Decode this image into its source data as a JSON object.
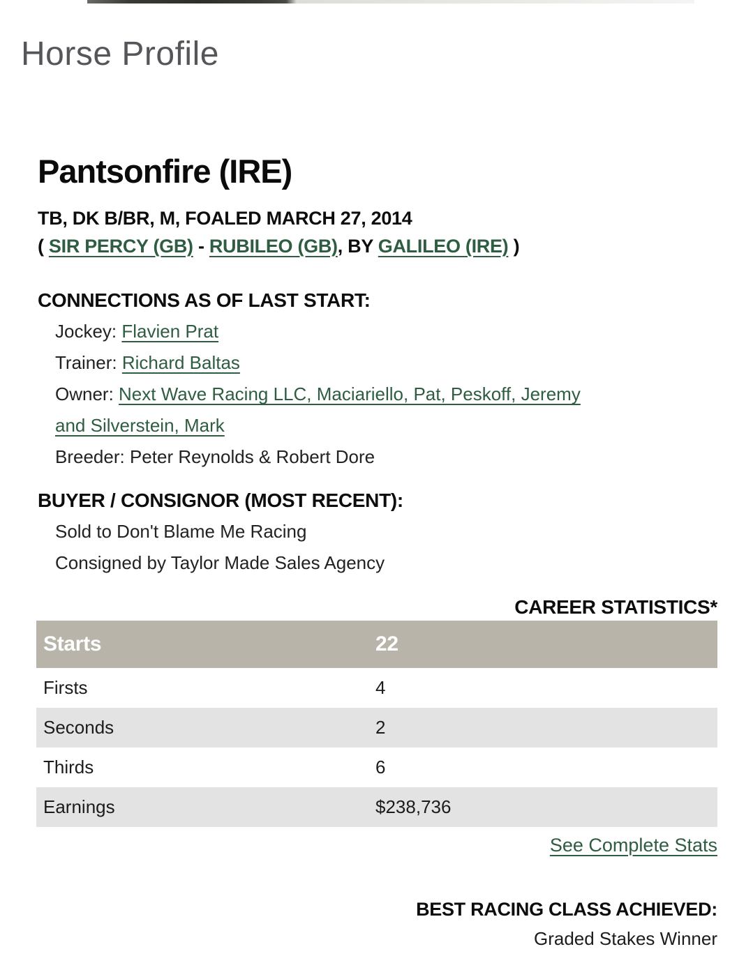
{
  "page": {
    "title": "Horse Profile"
  },
  "horse": {
    "name": "Pantsonfire (IRE)",
    "description": "TB, DK B/BR, M, FOALED MARCH 27, 2014",
    "pedigree": {
      "open_paren": "( ",
      "sire": "SIR PERCY (GB)",
      "separator": " - ",
      "dam": "RUBILEO (GB)",
      "by_text": ", BY ",
      "damsire": "GALILEO (IRE)",
      "close_paren": " )"
    }
  },
  "connections": {
    "heading": "CONNECTIONS AS OF LAST START:",
    "jockey_label": "Jockey: ",
    "jockey": "Flavien Prat",
    "trainer_label": "Trainer: ",
    "trainer": "Richard Baltas",
    "owner_label": "Owner: ",
    "owner_line1": "Next Wave Racing LLC, Maciariello, Pat, Peskoff, Jeremy",
    "owner_line2": "and Silverstein, Mark",
    "breeder_label": "Breeder: ",
    "breeder": "Peter Reynolds & Robert Dore"
  },
  "buyer_consignor": {
    "heading": "BUYER / CONSIGNOR (MOST RECENT):",
    "sold_to": "Sold to Don't Blame Me Racing",
    "consigned_by": "Consigned by Taylor Made Sales Agency"
  },
  "career_statistics": {
    "heading": "CAREER STATISTICS*",
    "rows": [
      {
        "label": "Starts",
        "value": "22"
      },
      {
        "label": "Firsts",
        "value": "4"
      },
      {
        "label": "Seconds",
        "value": "2"
      },
      {
        "label": "Thirds",
        "value": "6"
      },
      {
        "label": "Earnings",
        "value": "$238,736"
      }
    ],
    "see_complete_stats": "See Complete Stats"
  },
  "best_class": {
    "heading": "BEST RACING CLASS ACHIEVED:",
    "value": "Graded Stakes Winner"
  },
  "colors": {
    "link_green": "#2e5d41",
    "table_header_bg": "#b8b4aa",
    "table_alt_row_bg": "#e3e3e3",
    "page_title_grey": "#55565a"
  }
}
